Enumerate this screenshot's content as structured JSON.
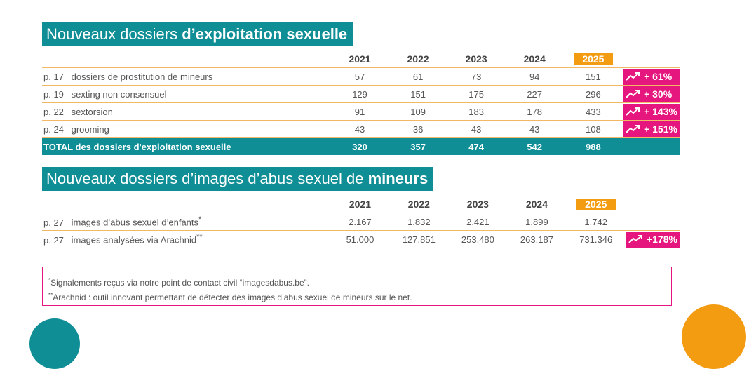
{
  "section1": {
    "title_plain": "Nouveaux dossiers ",
    "title_bold": "d’exploitation sexuelle",
    "years": [
      "2021",
      "2022",
      "2023",
      "2024",
      "2025"
    ],
    "rows": [
      {
        "page": "p. 17",
        "label": "dossiers de prostitution de mineurs",
        "values": [
          "57",
          "61",
          "73",
          "94",
          "151"
        ],
        "change": "+ 61%"
      },
      {
        "page": "p. 19",
        "label": "sexting non consensuel",
        "values": [
          "129",
          "151",
          "175",
          "227",
          "296"
        ],
        "change": "+ 30%"
      },
      {
        "page": "p. 22",
        "label": "sextorsion",
        "values": [
          "91",
          "109",
          "183",
          "178",
          "433"
        ],
        "change": "+ 143%"
      },
      {
        "page": "p. 24",
        "label": "grooming",
        "values": [
          "43",
          "36",
          "43",
          "43",
          "108"
        ],
        "change": "+ 151%"
      }
    ],
    "total": {
      "label": "TOTAL des dossiers d'exploitation sexuelle",
      "values": [
        "320",
        "357",
        "474",
        "542",
        "988"
      ]
    }
  },
  "section2": {
    "title_plain": "Nouveaux dossiers d’images d’abus sexuel de ",
    "title_bold": "mineurs",
    "years": [
      "2021",
      "2022",
      "2023",
      "2024",
      "2025"
    ],
    "rows": [
      {
        "page": "p. 27",
        "label": "images d’abus sexuel d’enfants",
        "sup": "*",
        "values": [
          "2.167",
          "1.832",
          "2.421",
          "1.899",
          "1.742"
        ],
        "change": ""
      },
      {
        "page": "p. 27",
        "label": "images analysées via Arachnid",
        "sup": "**",
        "values": [
          "51.000",
          "127.851",
          "253.480",
          "263.187",
          "731.346"
        ],
        "change": "+178%"
      }
    ]
  },
  "footnotes": {
    "note1_mark": "*",
    "note1": "Signalements reçus via notre point de contact civil “imagesdabus.be”.",
    "note2_mark": "**",
    "note2": "Arachnid : outil innovant permettant de détecter des images d’abus sexuel de mineurs sur le net."
  },
  "colors": {
    "teal": "#0f8e96",
    "orange": "#f39c12",
    "magenta": "#e5177e"
  },
  "icons": {
    "trend": "trend-up-icon"
  }
}
